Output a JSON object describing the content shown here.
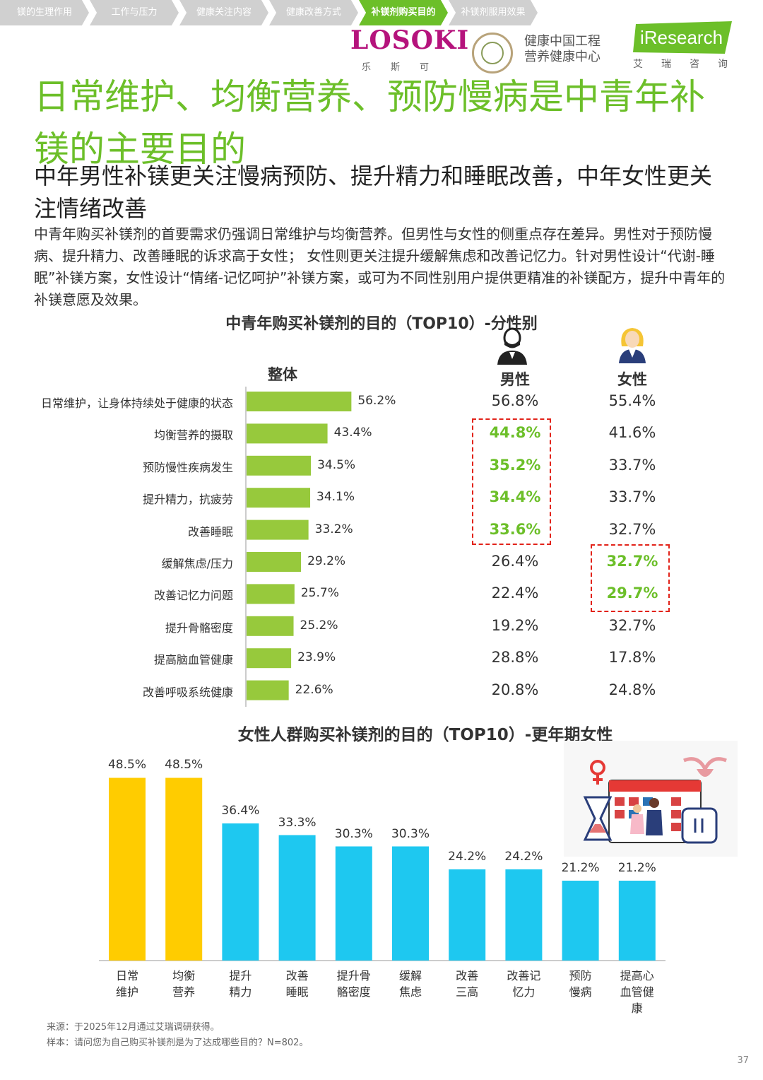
{
  "nav": {
    "items": [
      {
        "label": "镁的生理作用",
        "active": false
      },
      {
        "label": "工作与压力",
        "active": false
      },
      {
        "label": "健康关注内容",
        "active": false
      },
      {
        "label": "健康改善方式",
        "active": false
      },
      {
        "label": "补镁剂购买目的",
        "active": true
      },
      {
        "label": "补镁剂服用效果",
        "active": false
      }
    ]
  },
  "logos": {
    "losoki": "LOSOKI",
    "losoki_sub": "乐斯可",
    "health_center_line1": "健康中国工程",
    "health_center_line2": "营养健康中心",
    "iresearch": "iResearch",
    "iresearch_sub": "艾瑞咨询"
  },
  "title": "日常维护、均衡营养、预防慢病是中青年补镁的主要目的",
  "subtitle": "中年男性补镁更关注慢病预防、提升精力和睡眠改善，中年女性更关注情绪改善",
  "paragraph": "中青年购买补镁剂的首要需求仍强调日常维护与均衡营养。但男性与女性的侧重点存在差异。男性对于预防慢病、提升精力、改善睡眠的诉求高于女性； 女性则更关注提升缓解焦虑和改善记忆力。针对男性设计“代谢-睡眠”补镁方案，女性设计“情绪-记忆呵护”补镁方案，或可为不同性别用户提供更精准的补镁配方，提升中青年的补镁意愿及效果。",
  "colors": {
    "green": "#6cbf29",
    "bar_green": "#97c93c",
    "yellow": "#ffcc00",
    "cyan": "#1ec8f0",
    "red_dash": "#e2231a",
    "nav_gray": "#d0d0d0"
  },
  "chart_data": [
    {
      "type": "bar",
      "orientation": "horizontal",
      "title": "中青年购买补镁剂的目的（TOP10）-分性别",
      "headers": {
        "overall": "整体",
        "male": "男性",
        "female": "女性"
      },
      "categories": [
        "日常维护，让身体持续处于健康的状态",
        "均衡营养的摄取",
        "预防慢性疾病发生",
        "提升精力，抗疲劳",
        "改善睡眠",
        "缓解焦虑/压力",
        "改善记忆力问题",
        "提升骨骼密度",
        "提高脑血管健康",
        "改善呼吸系统健康"
      ],
      "series": [
        {
          "name": "整体",
          "values": [
            56.2,
            43.4,
            34.5,
            34.1,
            33.2,
            29.2,
            25.7,
            25.2,
            23.9,
            22.6
          ]
        },
        {
          "name": "男性",
          "values": [
            56.8,
            44.8,
            35.2,
            34.4,
            33.6,
            26.4,
            22.4,
            19.2,
            28.8,
            20.8
          ],
          "highlighted": [
            false,
            true,
            true,
            true,
            true,
            false,
            false,
            false,
            false,
            false
          ]
        },
        {
          "name": "女性",
          "values": [
            55.4,
            41.6,
            33.7,
            33.7,
            32.7,
            32.7,
            29.7,
            32.7,
            17.8,
            24.8
          ],
          "highlighted": [
            false,
            false,
            false,
            false,
            false,
            true,
            true,
            false,
            false,
            false
          ]
        }
      ],
      "unit": "%"
    },
    {
      "type": "bar",
      "orientation": "vertical",
      "title": "女性人群购买补镁剂的目的（TOP10）-更年期女性",
      "categories": [
        [
          "日常",
          "维护"
        ],
        [
          "均衡",
          "营养"
        ],
        [
          "提升",
          "精力"
        ],
        [
          "改善",
          "睡眠"
        ],
        [
          "提升骨",
          "骼密度"
        ],
        [
          "缓解",
          "焦虑"
        ],
        [
          "改善",
          "三高"
        ],
        [
          "改善记",
          "忆力"
        ],
        [
          "预防",
          "慢病"
        ],
        [
          "提高心",
          "血管健",
          "康"
        ]
      ],
      "values": [
        48.5,
        48.5,
        36.4,
        33.3,
        30.3,
        30.3,
        24.2,
        24.2,
        21.2,
        21.2
      ],
      "bar_colors": [
        "yellow",
        "yellow",
        "cyan",
        "cyan",
        "cyan",
        "cyan",
        "cyan",
        "cyan",
        "cyan",
        "cyan"
      ],
      "unit": "%"
    }
  ],
  "footer": {
    "source": "来源：于2025年12月通过艾瑞调研获得。",
    "sample": "样本：请问您为自己购买补镁剂是为了达成哪些目的？N=802。"
  },
  "page_number": "37"
}
